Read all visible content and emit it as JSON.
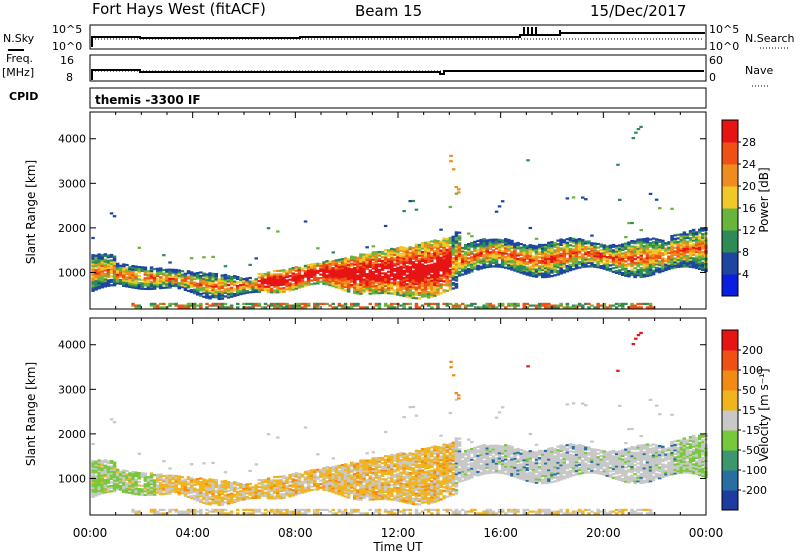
{
  "header": {
    "station": "Fort Hays West (fitACF)",
    "beam": "Beam 15",
    "date": "15/Dec/2017"
  },
  "top_panels": {
    "nsky_label": "N.Sky",
    "nsearch_label": "N.Search",
    "freq_label_1": "Freq.",
    "freq_label_2": "[MHz]",
    "nave_label": "Nave",
    "cpid_label": "CPID",
    "cpid_value": "themis -3300 IF",
    "noise_left_ticks": [
      "10^5",
      "10^0"
    ],
    "noise_right_ticks": [
      "10^5",
      "10^0"
    ],
    "freq_left_ticks": [
      "16",
      "8"
    ],
    "nave_right_ticks": [
      "60",
      "0"
    ]
  },
  "chart_data": [
    {
      "type": "heatmap",
      "name": "power",
      "ylabel": "Slant Range [km]",
      "xlabel": "Time UT",
      "xlim": [
        0,
        24
      ],
      "ylim": [
        180,
        4600
      ],
      "x_ticks": [
        "00:00",
        "04:00",
        "08:00",
        "12:00",
        "16:00",
        "20:00",
        "00:00"
      ],
      "y_ticks": [
        "1000",
        "2000",
        "3000",
        "4000"
      ],
      "colorbar": {
        "label": "Power [dB]",
        "ticks": [
          "4",
          "8",
          "12",
          "16",
          "20",
          "24",
          "28"
        ],
        "colors": [
          "#0a1ee0",
          "#1e46a0",
          "#2e8b57",
          "#69b43c",
          "#f0c828",
          "#f08c1e",
          "#f05014",
          "#e61414"
        ]
      }
    },
    {
      "type": "heatmap",
      "name": "velocity",
      "ylabel": "Slant Range [km]",
      "xlabel": "Time UT",
      "xlim": [
        0,
        24
      ],
      "ylim": [
        180,
        4600
      ],
      "x_ticks": [
        "00:00",
        "04:00",
        "08:00",
        "12:00",
        "16:00",
        "20:00",
        "00:00"
      ],
      "y_ticks": [
        "1000",
        "2000",
        "3000",
        "4000"
      ],
      "colorbar": {
        "label": "Velocity [m s⁻¹]",
        "ticks": [
          "200",
          "100",
          "50",
          "15",
          "-15",
          "-50",
          "-100",
          "-200"
        ],
        "colors": [
          "#1e3ca0",
          "#286ea0",
          "#3c966e",
          "#78c83c",
          "#c8c8c8",
          "#f0b41e",
          "#f08c14",
          "#f05014",
          "#e61414"
        ]
      }
    }
  ]
}
